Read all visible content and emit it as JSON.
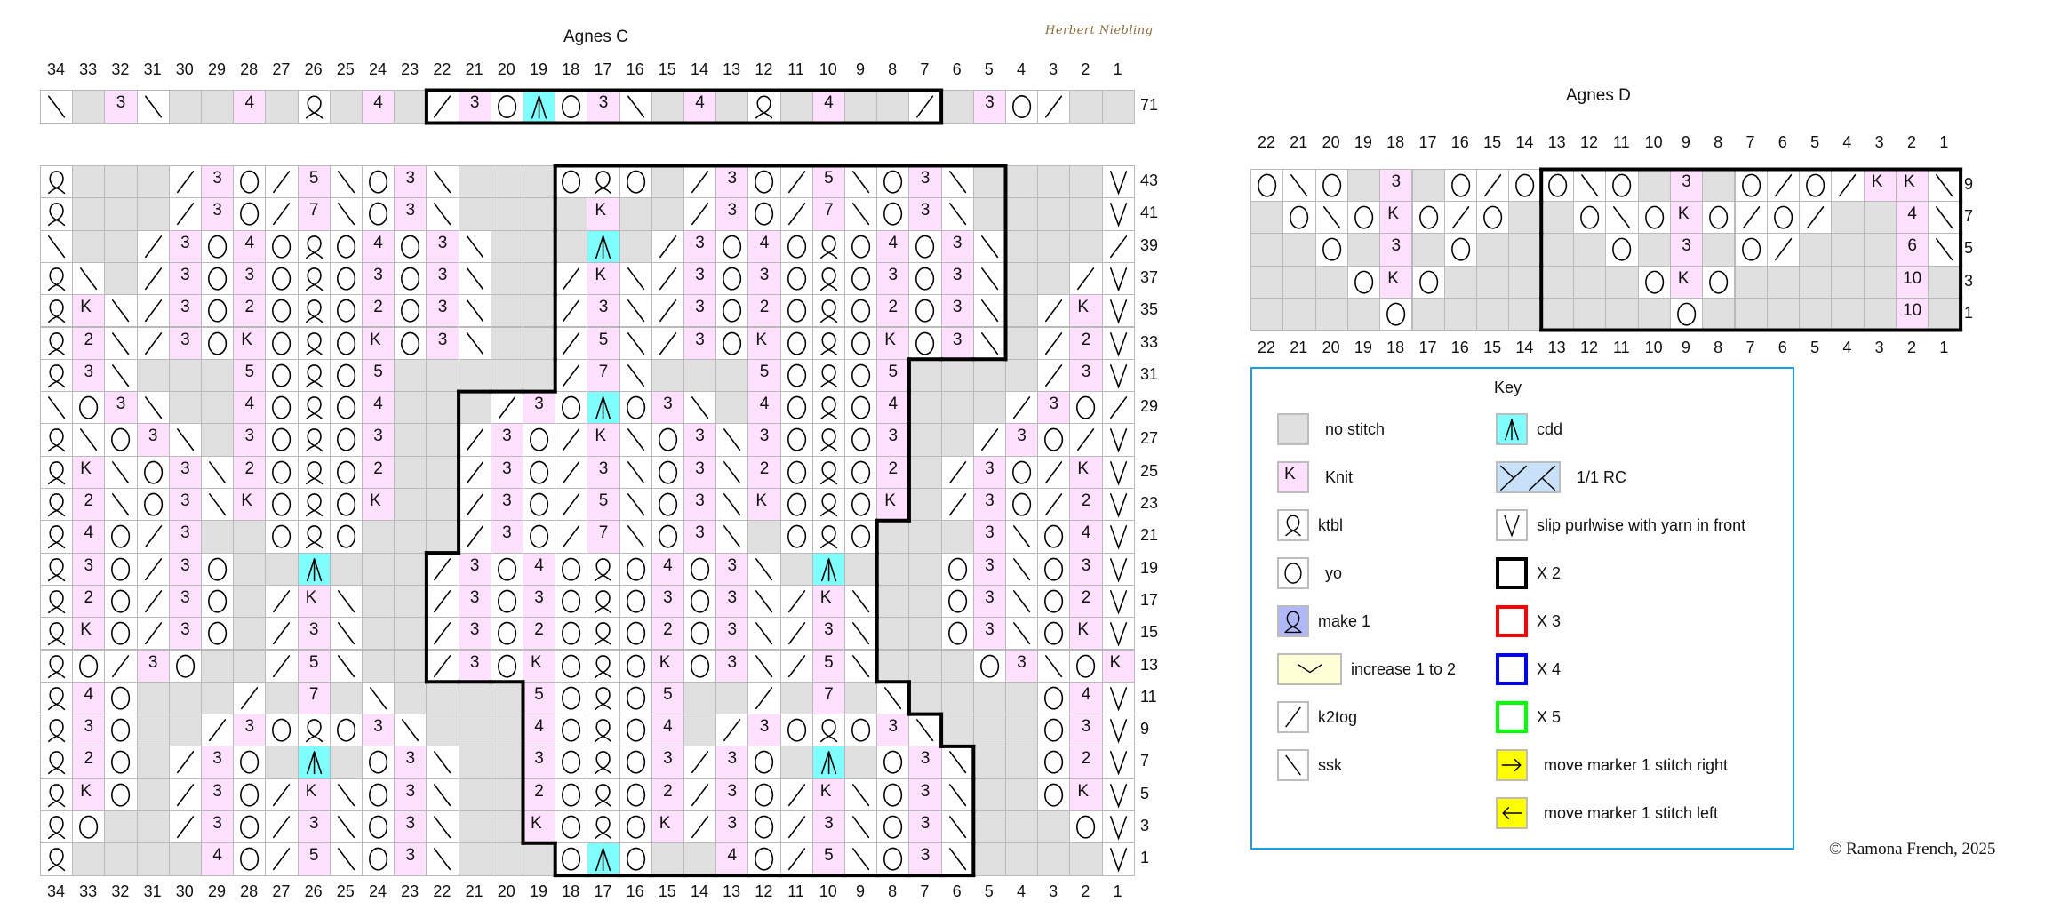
{
  "signature": "Herbert Niebling",
  "chart_c": {
    "title": "Agnes C",
    "col_labels": [
      "34",
      "33",
      "32",
      "31",
      "30",
      "29",
      "28",
      "27",
      "26",
      "25",
      "24",
      "23",
      "22",
      "21",
      "20",
      "19",
      "18",
      "17",
      "16",
      "15",
      "14",
      "13",
      "12",
      "11",
      "10",
      "9",
      "8",
      "7",
      "6",
      "5",
      "4",
      "3",
      "2",
      "1"
    ],
    "top_row": {
      "row": "71",
      "cells": "\\ . 3 \\ . . 4 . Q . 4 . / 3 O A O 3 \\ . 4 . Q . 4 . . / . 3 O / . .",
      "repeat": [
        22,
        7
      ]
    },
    "rows": [
      {
        "row": "43",
        "cells": "Q . . . / 3 O / 5 \\ O 3 \\ . . . O Q O . / 3 O / 5 \\ O 3 \\ . . . . V",
        "repeat": [
          18,
          5
        ]
      },
      {
        "row": "41",
        "cells": "Q . . . / 3 O / 7 \\ O 3 \\ . . . . K . . / 3 O / 7 \\ O 3 \\ . . . . V",
        "repeat": [
          18,
          5
        ]
      },
      {
        "row": "39",
        "cells": "\\ . . / 3 O 4 O Q O 4 O 3 \\ . . . A . / 3 O 4 O Q O 4 O 3 \\ . . . /",
        "repeat": [
          18,
          5
        ]
      },
      {
        "row": "37",
        "cells": "Q \\ . / 3 O 3 O Q O 3 O 3 \\ . . / K \\ / 3 O 3 O Q O 3 O 3 \\ . . / V",
        "repeat": [
          18,
          5
        ]
      },
      {
        "row": "35",
        "cells": "Q K \\ / 3 O 2 O Q O 2 O 3 \\ . . / 3 \\ / 3 O 2 O Q O 2 O 3 \\ . / K V",
        "repeat": [
          18,
          5
        ]
      },
      {
        "row": "33",
        "cells": "Q 2 \\ / 3 O K O Q O K O 3 \\ . . / 5 \\ / 3 O K O Q O K O 3 \\ . / 2 V",
        "repeat": [
          18,
          5
        ]
      },
      {
        "row": "31",
        "cells": "Q 3 \\ . . . 5 O Q O 5 . . . . . / 7 \\ . . . 5 O Q O 5 . . . . / 3 V",
        "repeat": [
          18,
          8
        ]
      },
      {
        "row": "29",
        "cells": "\\ O 3 \\ . . 4 O Q O 4 . . . / 3 O A O 3 \\ . 4 O Q O 4 . . . / 3 O /",
        "repeat": [
          21,
          8
        ]
      },
      {
        "row": "27",
        "cells": "Q \\ O 3 \\ . 3 O Q O 3 . . / 3 O / K \\ O 3 \\ 3 O Q O 3 . . / 3 O / V",
        "repeat": [
          21,
          8
        ]
      },
      {
        "row": "25",
        "cells": "Q K \\ O 3 \\ 2 O Q O 2 . . / 3 O / 3 \\ O 3 \\ 2 O Q O 2 . / 3 O / K V",
        "repeat": [
          21,
          8
        ]
      },
      {
        "row": "23",
        "cells": "Q 2 \\ O 3 \\ K O Q O K . . / 3 O / 5 \\ O 3 \\ K O Q O K . / 3 O / 2 V",
        "repeat": [
          21,
          8
        ]
      },
      {
        "row": "21",
        "cells": "Q 4 O / 3 . . O Q O . . . / 3 O / 7 \\ O 3 \\ . O Q O . . . 3 \\ O 4 V",
        "repeat": [
          21,
          9
        ]
      },
      {
        "row": "19",
        "cells": "Q 3 O / 3 O . . A . . . / 3 O 4 O Q O 4 O 3 \\ . A . . . O 3 \\ O 3 V",
        "repeat": [
          22,
          9
        ]
      },
      {
        "row": "17",
        "cells": "Q 2 O / 3 O . / K \\ . . / 3 O 3 O Q O 3 O 3 \\ / K \\ . . O 3 \\ O 2 V",
        "repeat": [
          22,
          9
        ]
      },
      {
        "row": "15",
        "cells": "Q K O / 3 O . / 3 \\ . . / 3 O 2 O Q O 2 O 3 \\ / 3 \\ . . O 3 \\ O K V",
        "repeat": [
          22,
          9
        ]
      },
      {
        "row": "13",
        "cells": "Q O / 3 O . . / 5 \\ . . / 3 O K O Q O K O 3 \\ / 5 \\ . . . O 3 \\ O K",
        "repeat": [
          22,
          9
        ]
      },
      {
        "row": "11",
        "cells": "Q 4 O . . . / . 7 . \\ . . . . 5 O Q O 5 . . / . 7 . \\ . . . . O 4 V",
        "repeat": [
          19,
          8
        ]
      },
      {
        "row": "9",
        "cells": "Q 3 O . . / 3 O Q O 3 \\ . . . 4 O Q O 4 . / 3 O Q O 3 \\ . . . O 3 V",
        "repeat": [
          19,
          7
        ]
      },
      {
        "row": "7",
        "cells": "Q 2 O . / 3 O . A . O 3 \\ . . 3 O Q O 3 / 3 O . A . O 3 \\ . . O 2 V",
        "repeat": [
          19,
          6
        ]
      },
      {
        "row": "5",
        "cells": "Q K O . / 3 O / K \\ O 3 \\ . . 2 O Q O 2 / 3 O / K \\ O 3 \\ . . O K V",
        "repeat": [
          19,
          6
        ]
      },
      {
        "row": "3",
        "cells": "Q O . . / 3 O / 3 \\ O 3 \\ . . K O Q O K / 3 O / 3 \\ O 3 \\ . . . O V",
        "repeat": [
          19,
          6
        ]
      },
      {
        "row": "1",
        "cells": "Q . . . . 4 O / 5 \\ O 3 \\ . . . O A O . . 4 O / 5 \\ O 3 \\ . . . . V",
        "repeat": [
          18,
          6
        ]
      }
    ]
  },
  "chart_d": {
    "title": "Agnes D",
    "col_labels": [
      "22",
      "21",
      "20",
      "19",
      "18",
      "17",
      "16",
      "15",
      "14",
      "13",
      "12",
      "11",
      "10",
      "9",
      "8",
      "7",
      "6",
      "5",
      "4",
      "3",
      "2",
      "1"
    ],
    "rows": [
      {
        "row": "9",
        "cells": "O \\ O . 3 . O / O O \\ O . 3 . O / O / K K \\",
        "repeat": [
          13,
          1
        ]
      },
      {
        "row": "7",
        "cells": ". O \\ O K O / O . . O \\ O K O / O / . . 4 \\",
        "repeat": [
          13,
          1
        ]
      },
      {
        "row": "5",
        "cells": ". . O . 3 . O . . . . O . 3 . O / . . . 6 \\",
        "repeat": [
          13,
          1
        ]
      },
      {
        "row": "3",
        "cells": ". . . O K O . . . . . . O K O . . . . . 10 .",
        "repeat": [
          13,
          1
        ]
      },
      {
        "row": "1",
        "cells": ". . . . O . . . . . . . . O . . . . . . 10 .",
        "repeat": [
          13,
          1
        ]
      }
    ]
  },
  "key": {
    "title": "Key",
    "left": [
      {
        "symbol": "no-stitch",
        "label": "no stitch"
      },
      {
        "symbol": "knit",
        "glyph": "K",
        "label": "Knit"
      },
      {
        "symbol": "ktbl",
        "label": "ktbl"
      },
      {
        "symbol": "yo",
        "label": "yo"
      },
      {
        "symbol": "make1",
        "label": "make 1"
      },
      {
        "symbol": "increase",
        "label": "increase 1 to 2"
      },
      {
        "symbol": "k2tog",
        "label": "k2tog"
      },
      {
        "symbol": "ssk",
        "label": "ssk"
      }
    ],
    "right": [
      {
        "symbol": "cdd",
        "label": "cdd"
      },
      {
        "symbol": "rc",
        "label": "1/1 RC"
      },
      {
        "symbol": "slip",
        "label": "slip purlwise with yarn in front"
      },
      {
        "symbol": "box",
        "color": "#000000",
        "label": "X 2"
      },
      {
        "symbol": "box",
        "color": "#ff0000",
        "label": "X 3"
      },
      {
        "symbol": "box",
        "color": "#0000ff",
        "label": "X 4"
      },
      {
        "symbol": "box",
        "color": "#00ff00",
        "label": "X 5"
      },
      {
        "symbol": "arrow-right",
        "label": "move marker 1 stitch right"
      },
      {
        "symbol": "arrow-left",
        "label": "move marker 1 stitch left"
      }
    ]
  },
  "colors": {
    "no_stitch": "#e0e0e0",
    "knit": "#ffe0ff",
    "cdd": "#80ffff",
    "make1": "#b0b8f8",
    "increase": "#ffffd8",
    "rc": "#c8e0f8",
    "marker": "#ffff00",
    "key_border": "#1a9ee0"
  },
  "copyright": "©  Ramona French, 2025"
}
